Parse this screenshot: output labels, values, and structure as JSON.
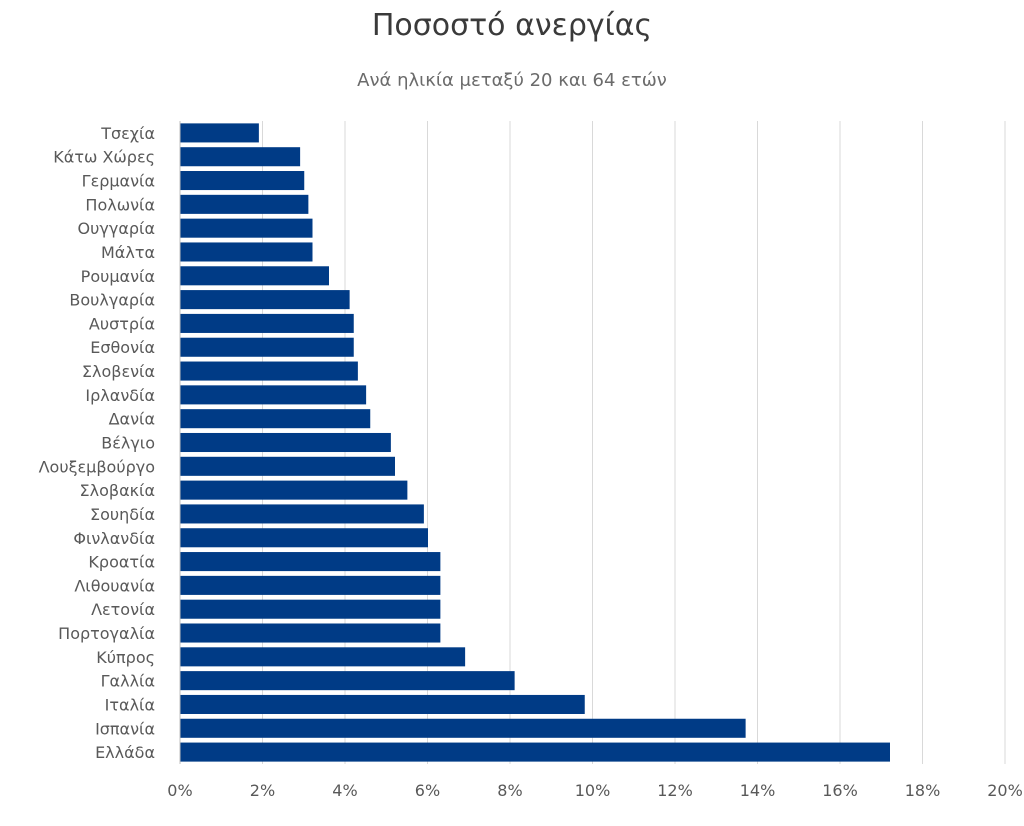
{
  "chart_data": {
    "type": "bar",
    "orientation": "horizontal",
    "title": "Ποσοστό ανεργίας",
    "subtitle": "Ανά ηλικία μεταξύ 20 και 64 ετών",
    "xlabel": "",
    "ylabel": "",
    "xlim": [
      0,
      20
    ],
    "tick_values": [
      0,
      2,
      4,
      6,
      8,
      10,
      12,
      14,
      16,
      18,
      20
    ],
    "tick_labels": [
      "0%",
      "2%",
      "4%",
      "6%",
      "8%",
      "10%",
      "12%",
      "14%",
      "16%",
      "18%",
      "20%"
    ],
    "grid": true,
    "legend": "none",
    "bar_color": "#003b86",
    "categories": [
      "Τσεχία",
      "Κάτω Χώρες",
      "Γερμανία",
      "Πολωνία",
      "Ουγγαρία",
      "Μάλτα",
      "Ρουμανία",
      "Βουλγαρία",
      "Αυστρία",
      "Εσθονία",
      "Σλοβενία",
      "Ιρλανδία",
      "Δανία",
      "Βέλγιο",
      "Λουξεμβούργο",
      "Σλοβακία",
      "Σουηδία",
      "Φινλανδία",
      "Κροατία",
      "Λιθουανία",
      "Λετονία",
      "Πορτογαλία",
      "Κύπρος",
      "Γαλλία",
      "Ιταλία",
      "Ισπανία",
      "Ελλάδα"
    ],
    "values": [
      1.9,
      2.9,
      3.0,
      3.1,
      3.2,
      3.2,
      3.6,
      4.1,
      4.2,
      4.2,
      4.3,
      4.5,
      4.6,
      5.1,
      5.2,
      5.5,
      5.9,
      6.0,
      6.3,
      6.3,
      6.3,
      6.3,
      6.9,
      8.1,
      9.8,
      13.7,
      17.2
    ]
  }
}
